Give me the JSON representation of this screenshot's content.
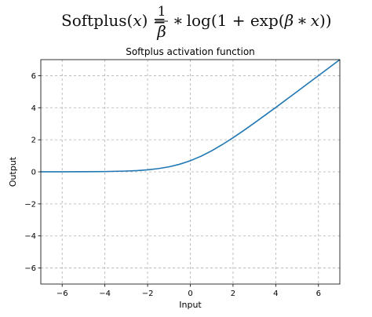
{
  "formula": {
    "name": "Softplus",
    "variable": "x",
    "numerator": "1",
    "denominator": "β",
    "log_text": "log(1 + exp(",
    "beta_symbol": "β",
    "times_symbol": "∗",
    "closing": "))"
  },
  "chart_data": {
    "type": "line",
    "title": "Softplus activation function",
    "xlabel": "Input",
    "ylabel": "Output",
    "xlim": [
      -7,
      7
    ],
    "ylim": [
      -7,
      7
    ],
    "xticks": [
      -6,
      -4,
      -2,
      0,
      2,
      4,
      6
    ],
    "yticks": [
      -6,
      -4,
      -2,
      0,
      2,
      4,
      6
    ],
    "grid": true,
    "line_color": "#1f77b4",
    "series": [
      {
        "x": [
          -7,
          -6,
          -5,
          -4,
          -3,
          -2.5,
          -2,
          -1.5,
          -1,
          -0.5,
          0,
          0.5,
          1,
          1.5,
          2,
          2.5,
          3,
          4,
          5,
          6,
          7
        ],
        "y": [
          0.001,
          0.002,
          0.007,
          0.018,
          0.049,
          0.079,
          0.127,
          0.201,
          0.313,
          0.474,
          0.693,
          0.974,
          1.313,
          1.701,
          2.127,
          2.579,
          3.049,
          4.018,
          5.007,
          6.002,
          7.001
        ]
      }
    ]
  }
}
